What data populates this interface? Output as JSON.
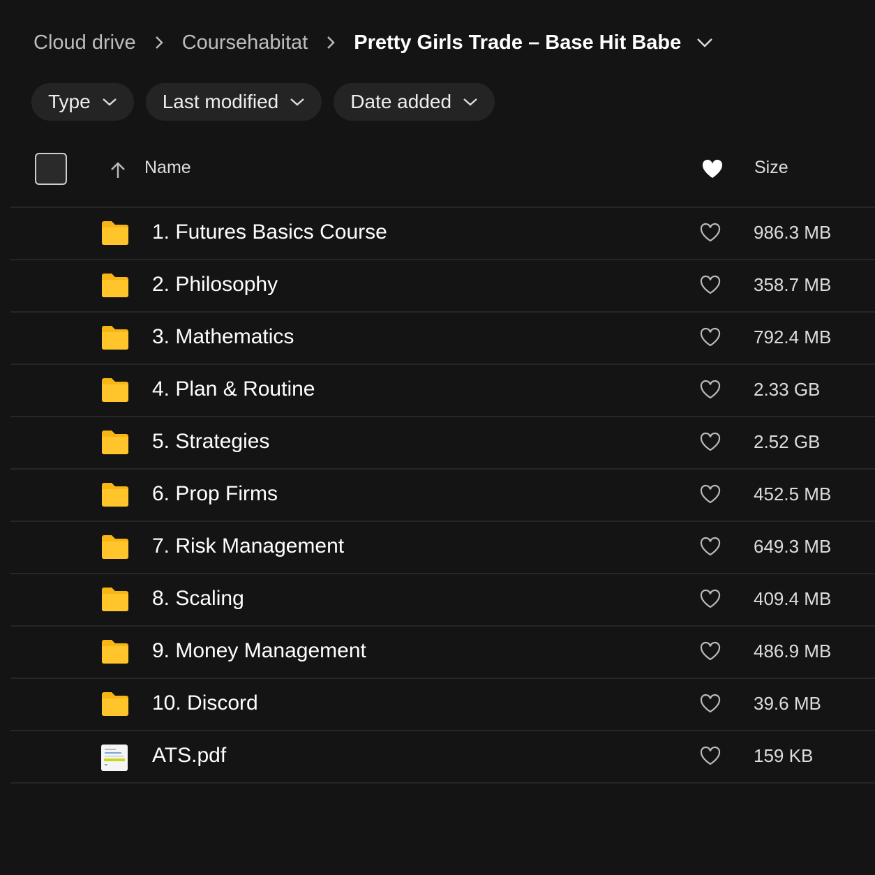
{
  "breadcrumb": {
    "items": [
      "Cloud drive",
      "Coursehabitat"
    ],
    "current": "Pretty Girls Trade – Base Hit Babe"
  },
  "filters": [
    "Type",
    "Last modified",
    "Date added"
  ],
  "header": {
    "name": "Name",
    "size": "Size"
  },
  "colors": {
    "folder": "#F8B616",
    "background": "#141414"
  },
  "rows": [
    {
      "name": "1. Futures Basics Course",
      "size": "986.3 MB",
      "type": "folder"
    },
    {
      "name": "2. Philosophy",
      "size": "358.7 MB",
      "type": "folder"
    },
    {
      "name": "3. Mathematics",
      "size": "792.4 MB",
      "type": "folder"
    },
    {
      "name": "4. Plan & Routine",
      "size": "2.33 GB",
      "type": "folder"
    },
    {
      "name": "5. Strategies",
      "size": "2.52 GB",
      "type": "folder"
    },
    {
      "name": "6. Prop Firms",
      "size": "452.5 MB",
      "type": "folder"
    },
    {
      "name": "7. Risk Management",
      "size": "649.3 MB",
      "type": "folder"
    },
    {
      "name": "8. Scaling",
      "size": "409.4 MB",
      "type": "folder"
    },
    {
      "name": "9. Money Management",
      "size": "486.9 MB",
      "type": "folder"
    },
    {
      "name": "10. Discord",
      "size": "39.6 MB",
      "type": "folder"
    },
    {
      "name": "ATS.pdf",
      "size": "159 KB",
      "type": "pdf"
    }
  ]
}
